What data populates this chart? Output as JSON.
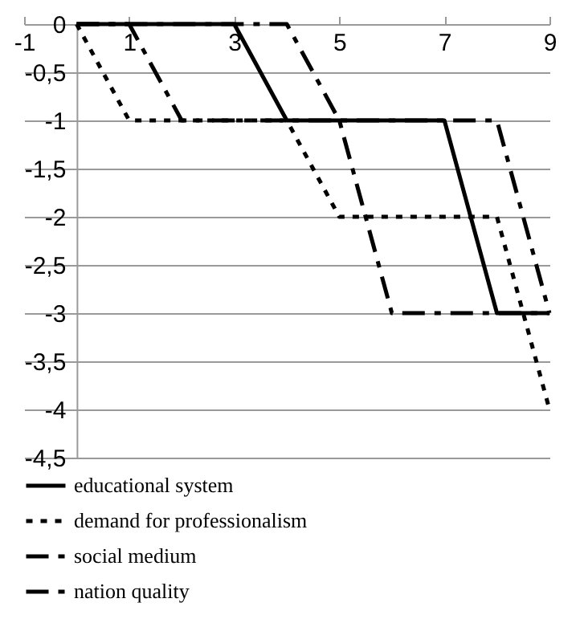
{
  "chart_data": {
    "type": "line",
    "xlim": [
      -1,
      9
    ],
    "xticks": [
      -1,
      1,
      3,
      5,
      7,
      9
    ],
    "ylim": [
      -4.5,
      0
    ],
    "yticks": [
      0,
      {
        "value": -0.5,
        "label": "-0,5"
      },
      -1,
      {
        "value": -1.5,
        "label": "-1,5"
      },
      -2,
      {
        "value": -2.5,
        "label": "-2,5"
      },
      -3,
      {
        "value": -3.5,
        "label": "-3,5"
      },
      -4,
      {
        "value": -4.5,
        "label": "-4,5"
      }
    ],
    "grid": "y",
    "legend": "bottom",
    "marker": "none",
    "series": [
      {
        "name": "educational system",
        "color": "#000000",
        "line_style": "solid",
        "x": [
          0,
          3,
          4,
          7,
          8,
          9
        ],
        "values": [
          0,
          0,
          -1,
          -1,
          -3,
          -3
        ]
      },
      {
        "name": "demand for professionalism",
        "color": "#000000",
        "line_style": "dotted",
        "x": [
          0,
          1,
          4,
          5,
          8,
          9
        ],
        "values": [
          0,
          -1,
          -1,
          -2,
          -2,
          -4
        ]
      },
      {
        "name": "social medium",
        "color": "#000000",
        "line_style": "dashed",
        "x": [
          0,
          1,
          2,
          5,
          6,
          9
        ],
        "values": [
          0,
          0,
          -1,
          -1,
          -3,
          -3
        ]
      },
      {
        "name": "nation quality",
        "color": "#000000",
        "line_style": "dashed",
        "x": [
          0,
          4,
          5,
          8,
          9
        ],
        "values": [
          0,
          0,
          -1,
          -1,
          -3
        ]
      }
    ]
  }
}
